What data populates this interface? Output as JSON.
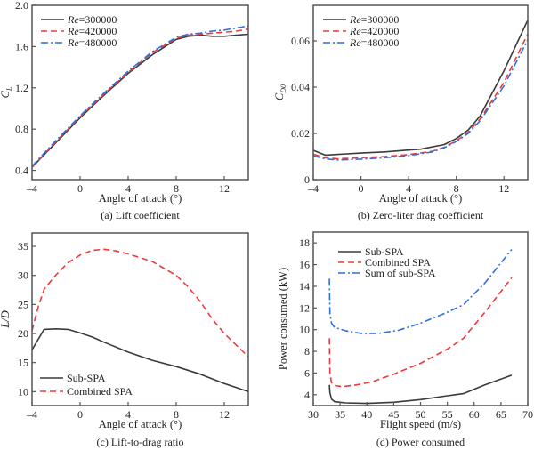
{
  "chart_data": [
    {
      "id": "a",
      "type": "line",
      "title": "(a) Lift coefficient",
      "xlabel": "Angle of attack (°)",
      "ylabel": "C_L",
      "ylabel_main": "C",
      "ylabel_sub": "L",
      "xlim": [
        -4,
        14
      ],
      "ylim": [
        0.31,
        2.0
      ],
      "xticks": [
        -4,
        0,
        4,
        8,
        12
      ],
      "yticks": [
        0.4,
        0.8,
        1.2,
        1.6,
        2.0
      ],
      "ytick_labels": [
        "0.4",
        "0.8",
        "1.2",
        "1.6",
        "2.0"
      ],
      "legend_position": "top-left",
      "legend_italic_prefix": true,
      "series": [
        {
          "name": "Re=300000",
          "prefix": "Re",
          "suffix": "=300000",
          "style": "solid",
          "color": "#3a3a3a",
          "x": [
            -4,
            -2,
            0,
            2,
            4,
            6,
            8,
            9,
            10,
            11,
            12,
            13,
            14
          ],
          "y": [
            0.43,
            0.67,
            0.91,
            1.13,
            1.34,
            1.52,
            1.67,
            1.7,
            1.71,
            1.7,
            1.7,
            1.71,
            1.72
          ]
        },
        {
          "name": "Re=420000",
          "prefix": "Re",
          "suffix": "=420000",
          "style": "dashed",
          "color": "#f03a3a",
          "x": [
            -4,
            -2,
            0,
            2,
            4,
            6,
            8,
            9,
            10,
            11,
            12,
            13,
            14
          ],
          "y": [
            0.43,
            0.68,
            0.92,
            1.14,
            1.35,
            1.54,
            1.68,
            1.71,
            1.72,
            1.73,
            1.74,
            1.75,
            1.77
          ]
        },
        {
          "name": "Re=480000",
          "prefix": "Re",
          "suffix": "=480000",
          "style": "dashdot",
          "color": "#2f6fe0",
          "x": [
            -4,
            -2,
            0,
            2,
            4,
            6,
            8,
            9,
            10,
            11,
            12,
            13,
            14
          ],
          "y": [
            0.44,
            0.69,
            0.93,
            1.15,
            1.36,
            1.55,
            1.69,
            1.72,
            1.73,
            1.75,
            1.76,
            1.78,
            1.8
          ]
        }
      ]
    },
    {
      "id": "b",
      "type": "line",
      "title": "(b) Zero-liter drag coefficient",
      "xlabel": "Angle of attack (°)",
      "ylabel": "C_D0",
      "ylabel_main": "C",
      "ylabel_sub": "D0",
      "xlim": [
        -4,
        14
      ],
      "ylim": [
        0,
        0.0754
      ],
      "xticks": [
        -4,
        0,
        4,
        8,
        12
      ],
      "yticks": [
        0,
        0.02,
        0.04,
        0.06
      ],
      "ytick_labels": [
        "0",
        "0.02",
        "0.04",
        "0.06"
      ],
      "legend_position": "top-left",
      "legend_italic_prefix": true,
      "series": [
        {
          "name": "Re=300000",
          "prefix": "Re",
          "suffix": "=300000",
          "style": "solid",
          "color": "#3a3a3a",
          "x": [
            -4,
            -3,
            0,
            2,
            4,
            5,
            7,
            8,
            9,
            10,
            12,
            14
          ],
          "y": [
            0.0127,
            0.0106,
            0.0115,
            0.012,
            0.0128,
            0.0132,
            0.0152,
            0.0178,
            0.0215,
            0.0275,
            0.047,
            0.069
          ]
        },
        {
          "name": "Re=420000",
          "prefix": "Re",
          "suffix": "=420000",
          "style": "dashed",
          "color": "#f03a3a",
          "x": [
            -4,
            -3,
            -2,
            0,
            2,
            4,
            6,
            7,
            8,
            9,
            10,
            12,
            14
          ],
          "y": [
            0.011,
            0.0095,
            0.009,
            0.0095,
            0.01,
            0.0108,
            0.0123,
            0.014,
            0.0168,
            0.0205,
            0.0262,
            0.042,
            0.063
          ]
        },
        {
          "name": "Re=480000",
          "prefix": "Re",
          "suffix": "=480000",
          "style": "dashdot",
          "color": "#2f6fe0",
          "x": [
            -4,
            -3,
            -2,
            0,
            2,
            4,
            6,
            7,
            8,
            9,
            10,
            12,
            14
          ],
          "y": [
            0.0103,
            0.009,
            0.0085,
            0.0089,
            0.0095,
            0.0104,
            0.012,
            0.0138,
            0.0165,
            0.02,
            0.0255,
            0.0405,
            0.0605
          ]
        }
      ]
    },
    {
      "id": "c",
      "type": "line",
      "title": "(c) Lift-to-drag ratio",
      "xlabel": "Angle of attack (°)",
      "ylabel": "L/D",
      "xlim": [
        -4,
        14
      ],
      "ylim": [
        7.6,
        37.3
      ],
      "xticks": [
        -4,
        0,
        4,
        8,
        12
      ],
      "yticks": [
        10,
        15,
        20,
        25,
        30,
        35
      ],
      "ytick_labels": [
        "10",
        "15",
        "20",
        "25",
        "30",
        "35"
      ],
      "legend_position": "bottom-left",
      "legend_italic_prefix": false,
      "series": [
        {
          "name": "Sub-SPA",
          "style": "solid",
          "color": "#3a3a3a",
          "x": [
            -4,
            -3,
            -2,
            -1,
            0,
            1,
            2,
            4,
            6,
            8,
            10,
            12,
            14
          ],
          "y": [
            17.2,
            20.7,
            20.8,
            20.7,
            20.1,
            19.4,
            18.5,
            16.8,
            15.4,
            14.3,
            13.0,
            11.4,
            10.0
          ]
        },
        {
          "name": "Combined SPA",
          "style": "dashed",
          "color": "#f03a3a",
          "x": [
            -4,
            -3.5,
            -3,
            -2,
            -1,
            0,
            1,
            2,
            3,
            4,
            6,
            8,
            9,
            10,
            11,
            12,
            13,
            14
          ],
          "y": [
            20.5,
            24.5,
            27.6,
            30.1,
            32.2,
            33.5,
            34.3,
            34.5,
            34.2,
            33.7,
            32.4,
            30.0,
            28.0,
            25.5,
            22.5,
            20.0,
            18.0,
            16.0
          ]
        }
      ]
    },
    {
      "id": "d",
      "type": "line",
      "title": "(d) Power consumed",
      "xlabel": "Flight speed (m/s)",
      "ylabel": "Power consumed (kW)",
      "xlim": [
        30,
        70
      ],
      "ylim": [
        3.0,
        19.0
      ],
      "xticks": [
        30,
        35,
        40,
        45,
        50,
        55,
        60,
        65,
        70
      ],
      "yticks": [
        4,
        6,
        8,
        10,
        12,
        14,
        16,
        18
      ],
      "ytick_labels": [
        "4",
        "6",
        "8",
        "10",
        "12",
        "14",
        "16",
        "18"
      ],
      "legend_position": "top-left",
      "legend_italic_prefix": false,
      "series": [
        {
          "name": "Sub-SPA",
          "style": "solid",
          "color": "#3a3a3a",
          "x": [
            33.0,
            33.1,
            33.4,
            34.0,
            36,
            40,
            45,
            50,
            55,
            58,
            62,
            67
          ],
          "y": [
            4.9,
            4.2,
            3.6,
            3.35,
            3.25,
            3.2,
            3.3,
            3.55,
            3.9,
            4.1,
            4.9,
            5.8
          ]
        },
        {
          "name": "Combined SPA",
          "style": "dashed",
          "color": "#f03a3a",
          "x": [
            33.0,
            33.1,
            33.4,
            34,
            35.5,
            38,
            41,
            45,
            50,
            55,
            58,
            62,
            67
          ],
          "y": [
            9.2,
            6.0,
            5.1,
            4.85,
            4.75,
            4.9,
            5.2,
            5.9,
            6.9,
            8.2,
            9.2,
            11.6,
            14.8
          ]
        },
        {
          "name": "Sum of sub-SPA",
          "style": "dashdot",
          "color": "#2f6fe0",
          "x": [
            33.0,
            33.1,
            33.4,
            34,
            36,
            39,
            42,
            46,
            50,
            55,
            58,
            62,
            67
          ],
          "y": [
            14.7,
            11.5,
            10.6,
            10.2,
            9.9,
            9.65,
            9.65,
            9.95,
            10.6,
            11.6,
            12.3,
            14.3,
            17.4
          ]
        }
      ]
    }
  ]
}
